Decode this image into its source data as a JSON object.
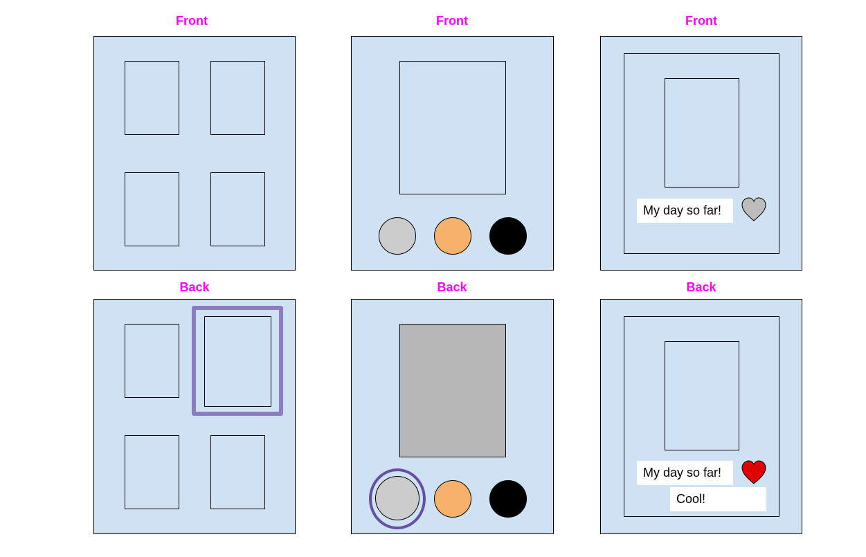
{
  "labels": {
    "front": "Front",
    "back": "Back"
  },
  "texts": {
    "caption": "My day so far!",
    "reply": "Cool!"
  },
  "colors": {
    "label": "#ff00ff",
    "panel_fill": "#cfe2f3",
    "gray_fill": "#b7b7b7",
    "light_gray": "#cccccc",
    "orange": "#f6b26b",
    "black": "#000000",
    "highlight": "#8e7cc3",
    "highlight_ellipse": "#674ea7",
    "heart_gray": "#bcbcbc",
    "heart_red": "#e00000"
  },
  "icons": {
    "heart_front": "heart-outline-gray",
    "heart_back": "heart-filled-red"
  }
}
